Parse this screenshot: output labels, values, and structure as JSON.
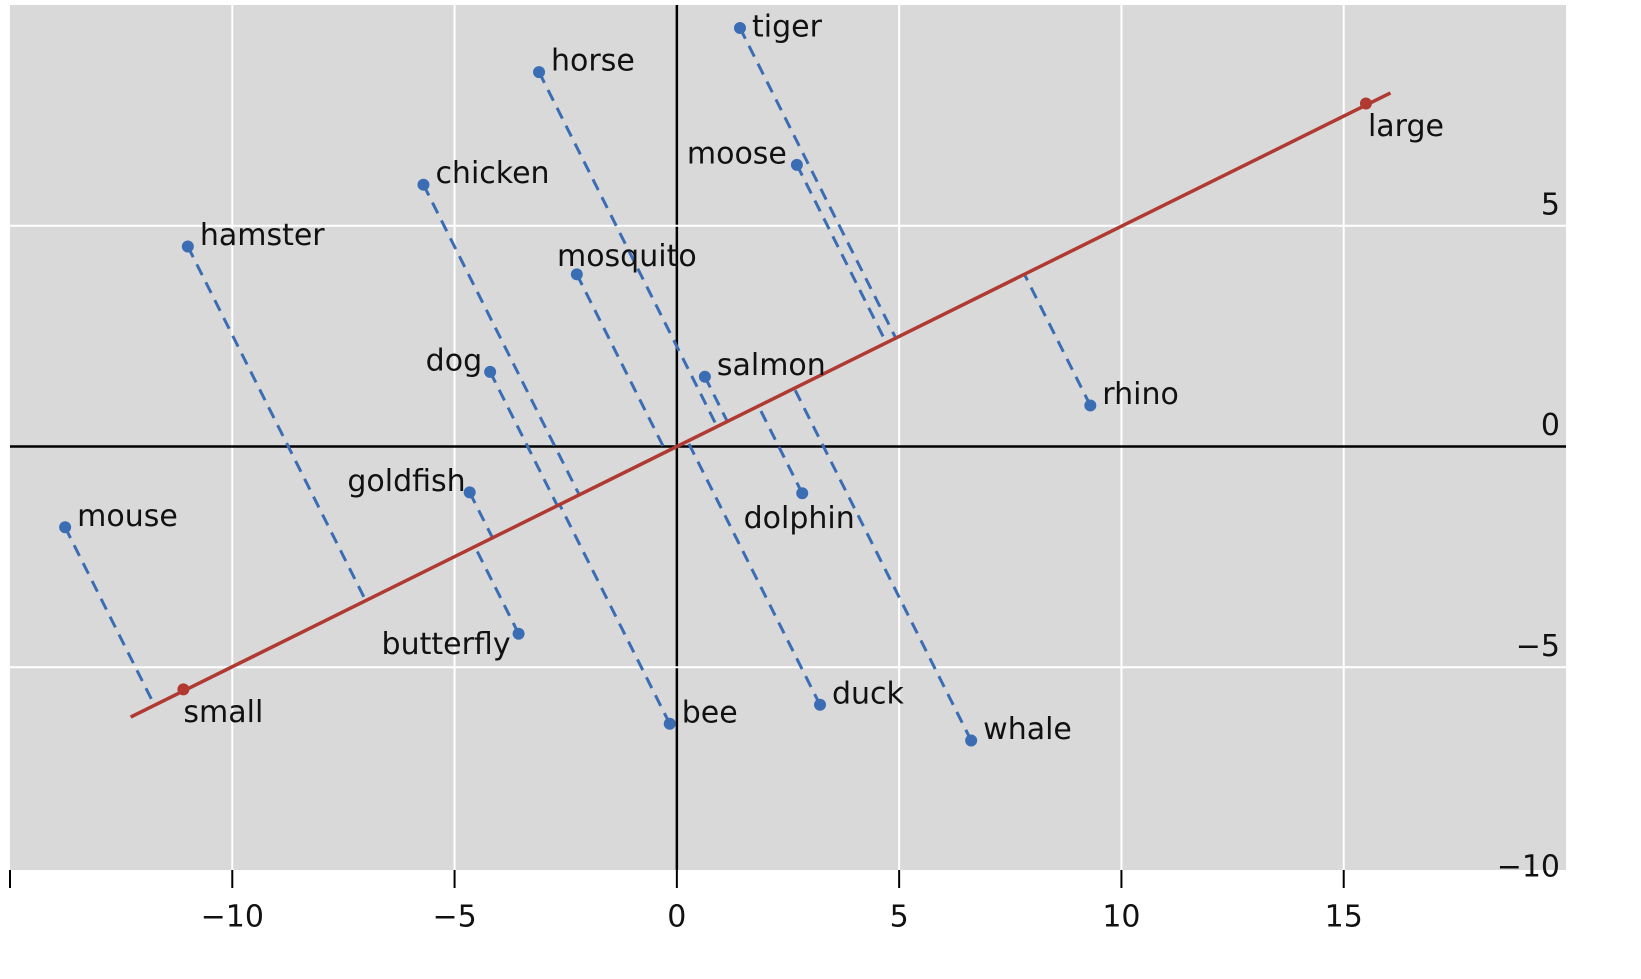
{
  "chart_data": {
    "type": "scatter",
    "series": [
      {
        "color": "#3b6db4",
        "labels": [
          "tiger",
          "horse",
          "moose",
          "chicken",
          "hamster",
          "mosquito",
          "dog",
          "salmon",
          "rhino",
          "goldfish",
          "dolphin",
          "mouse",
          "butterfly",
          "bee",
          "duck",
          "whale"
        ],
        "x": [
          1.42,
          -3.1,
          2.7,
          -5.7,
          -11.0,
          -2.25,
          -4.2,
          0.63,
          9.3,
          -4.66,
          2.82,
          -13.76,
          -3.56,
          -0.16,
          3.22,
          6.62
        ],
        "values": [
          9.48,
          8.48,
          6.38,
          5.93,
          4.53,
          3.9,
          1.69,
          1.58,
          0.93,
          -1.04,
          -1.06,
          -1.83,
          -4.24,
          -6.28,
          -5.85,
          -6.66
        ]
      },
      {
        "color": "#b03a32",
        "labels": [
          "large",
          "small"
        ],
        "x": [
          15.5,
          -11.1
        ],
        "values": [
          7.77,
          -5.5
        ]
      }
    ],
    "xlim": [
      -15,
      20
    ],
    "ylim": [
      -10,
      10
    ],
    "xticks": [
      {
        "value": -10,
        "label": "−10"
      },
      {
        "value": -5,
        "label": "−5"
      },
      0,
      5,
      10,
      15
    ],
    "yticks": [
      5,
      0,
      {
        "value": -5,
        "label": "−5"
      },
      {
        "value": -10,
        "label": "−10"
      }
    ],
    "grid": true
  }
}
